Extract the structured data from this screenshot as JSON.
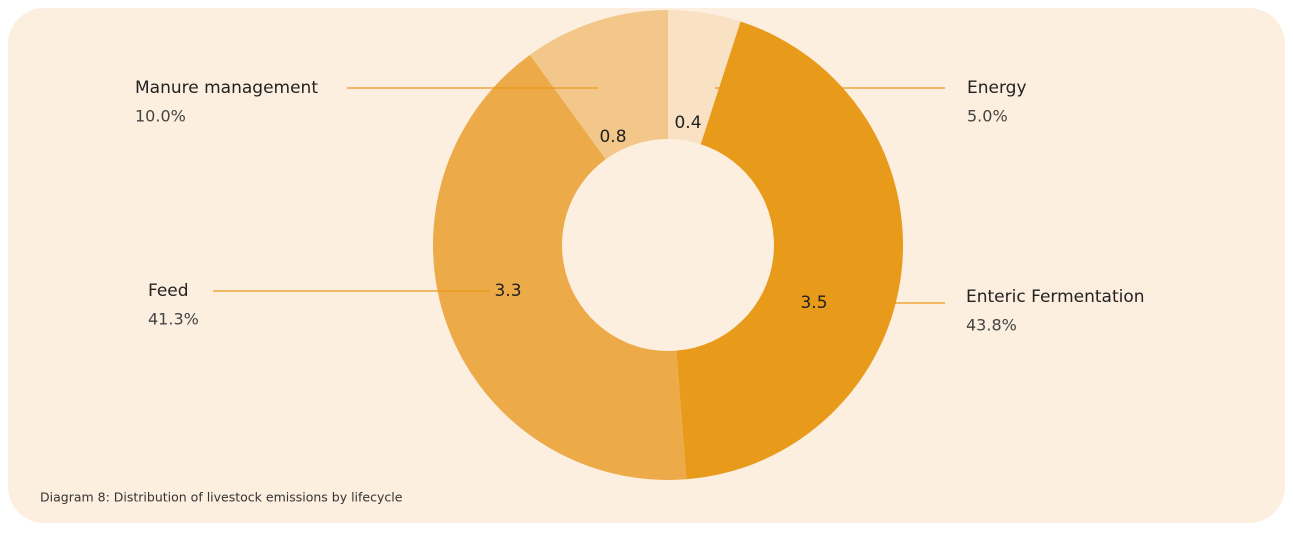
{
  "chart_data": {
    "type": "pie",
    "donut": true,
    "categories": [
      "Energy",
      "Enteric Fermentation",
      "Feed",
      "Manure management"
    ],
    "values": [
      0.4,
      3.5,
      3.3,
      0.8
    ],
    "percent_labels": [
      "5.0%",
      "43.8%",
      "41.3%",
      "10.0%"
    ],
    "colors": [
      "#f9e2c4",
      "#e89a1a",
      "#ecaa48",
      "#f3c78a"
    ],
    "caption": "Diagram 8: Distribution of livestock emissions by lifecycle"
  }
}
